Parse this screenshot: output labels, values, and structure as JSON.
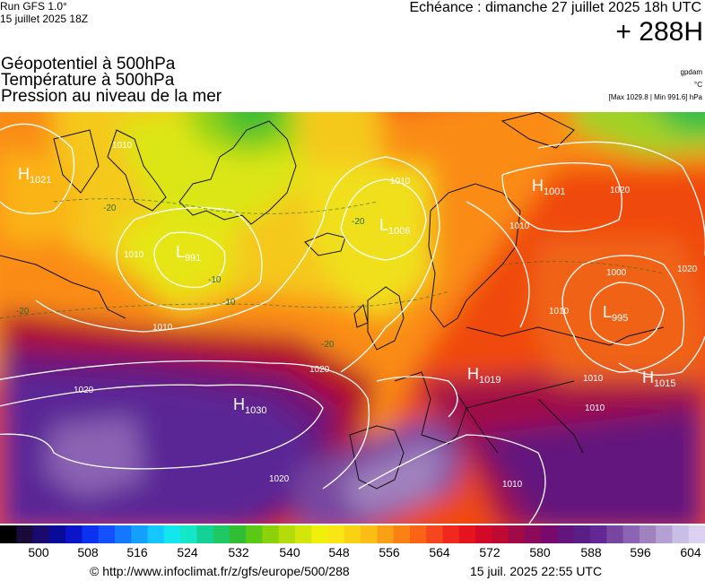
{
  "header": {
    "run_line1": "Run GFS 1.0°",
    "run_line2": "15 juillet 2025 18Z",
    "echeance": "Echéance : dimanche 27 juillet 2025 18h UTC",
    "lead": "+ 288H"
  },
  "fields": [
    "Géopotentiel à 500hPa",
    "Température à 500hPa",
    "Pression au niveau de la mer"
  ],
  "side": {
    "unit1": "gpdam",
    "unit2": "°C",
    "range": "[Max 1029.8 | Min 991.6] hPa"
  },
  "map": {
    "pressure_centers": [
      {
        "type": "H",
        "value": "1021"
      },
      {
        "type": "L",
        "value": "991"
      },
      {
        "type": "L",
        "value": "1006"
      },
      {
        "type": "H",
        "value": "1001"
      },
      {
        "type": "L",
        "value": "995"
      },
      {
        "type": "H",
        "value": "1030"
      },
      {
        "type": "H",
        "value": "1019"
      },
      {
        "type": "H",
        "value": "1015"
      }
    ],
    "isobar_labels": [
      "1010",
      "1010",
      "1010",
      "1020",
      "1020",
      "1010",
      "1000",
      "1010",
      "1020",
      "1010",
      "1010",
      "1020",
      "1010",
      "1010",
      "1020"
    ],
    "temperature_labels": [
      "-20",
      "-10",
      "-10",
      "-20",
      "-20",
      "-20"
    ]
  },
  "colorbar": {
    "ticks": [
      "500",
      "508",
      "516",
      "524",
      "532",
      "540",
      "548",
      "556",
      "564",
      "572",
      "580",
      "588",
      "596",
      "604"
    ],
    "colors": [
      "#000000",
      "#1a0a3a",
      "#1a0a6e",
      "#0a0a9a",
      "#0a14c8",
      "#0a32f0",
      "#1450ff",
      "#1478ff",
      "#14a0ff",
      "#14c8ff",
      "#14e6f0",
      "#14e6c8",
      "#14d296",
      "#1ec864",
      "#32be32",
      "#5ac814",
      "#8cd20a",
      "#b4dc0a",
      "#d2e60a",
      "#f0f00a",
      "#fae614",
      "#fad214",
      "#fabe14",
      "#faa014",
      "#fa8214",
      "#fa6414",
      "#f5461e",
      "#f0281e",
      "#e6141e",
      "#d20a28",
      "#be0a32",
      "#a00a46",
      "#8c0a5a",
      "#780a6e",
      "#64147d",
      "#5a1e87",
      "#642896",
      "#7846a0",
      "#8c64b4",
      "#a082be",
      "#b4a0d2",
      "#c8bee6",
      "#dcd2f0"
    ]
  },
  "footer": {
    "url": "© http://www.infoclimat.fr/z/gfs/europe/500/288",
    "date": "15 juil. 2025 22:55 UTC"
  }
}
